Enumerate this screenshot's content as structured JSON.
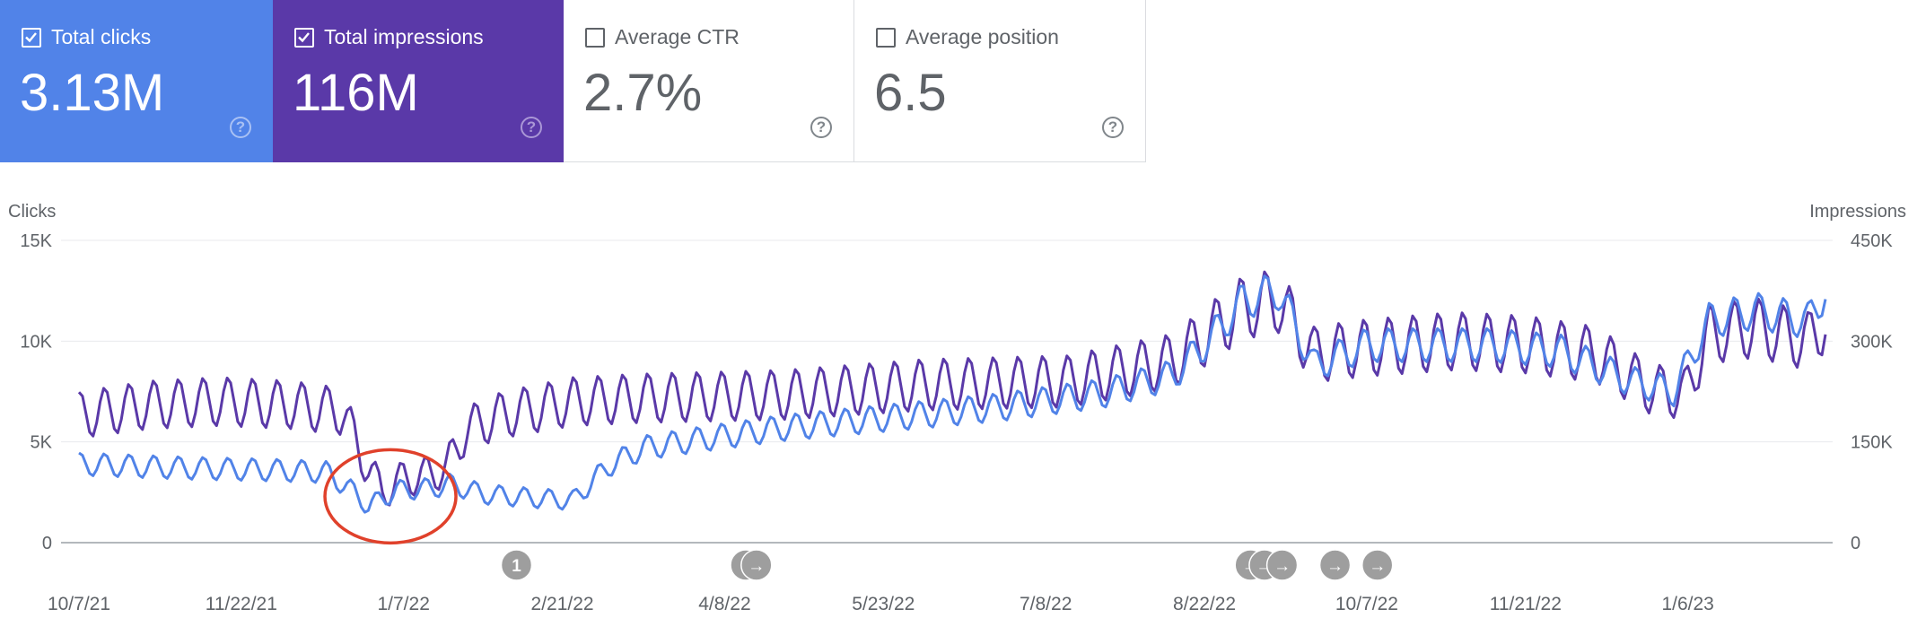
{
  "cards": [
    {
      "label": "Total clicks",
      "value": "3.13M",
      "checked": true,
      "help": "?"
    },
    {
      "label": "Total impressions",
      "value": "116M",
      "checked": true,
      "help": "?"
    },
    {
      "label": "Average CTR",
      "value": "2.7%",
      "checked": false,
      "help": "?"
    },
    {
      "label": "Average position",
      "value": "6.5",
      "checked": false,
      "help": "?"
    }
  ],
  "colors": {
    "clicks": "#5183e8",
    "impressions": "#5a39a8",
    "annotation": "#e0412b",
    "grid": "#e8eaed",
    "axis": "#9aa0a6",
    "marker": "#9e9e9e"
  },
  "chart_data": {
    "type": "line",
    "left_axis_title": "Clicks",
    "right_axis_title": "Impressions",
    "left_ticks": [
      "0",
      "5K",
      "10K",
      "15K"
    ],
    "right_ticks": [
      "0",
      "150K",
      "300K",
      "450K"
    ],
    "ylim_left": [
      0,
      15000
    ],
    "ylim_right": [
      0,
      450000
    ],
    "x_tick_labels": [
      "10/7/21",
      "11/22/21",
      "1/7/22",
      "2/21/22",
      "4/8/22",
      "5/23/22",
      "7/8/22",
      "8/22/22",
      "10/7/22",
      "11/21/22",
      "1/6/23"
    ],
    "x_tick_days": [
      0,
      46,
      92,
      137,
      183,
      228,
      274,
      319,
      365,
      410,
      456
    ],
    "day_span": [
      0,
      495
    ],
    "event_markers": [
      {
        "day": 124,
        "label": "1"
      },
      {
        "day": 189,
        "label": "→"
      },
      {
        "day": 192,
        "label": "→"
      },
      {
        "day": 332,
        "label": "→"
      },
      {
        "day": 336,
        "label": "→"
      },
      {
        "day": 341,
        "label": "→"
      },
      {
        "day": 356,
        "label": "→"
      },
      {
        "day": 368,
        "label": "→"
      }
    ],
    "annotation": {
      "type": "circle",
      "note": "dip highlighted",
      "day": 87,
      "clicks": 2300
    },
    "series": [
      {
        "name": "Clicks",
        "axis": "left",
        "anchors": [
          [
            0,
            3900
          ],
          [
            30,
            3700
          ],
          [
            55,
            3600
          ],
          [
            70,
            3500
          ],
          [
            78,
            2500
          ],
          [
            82,
            1800
          ],
          [
            90,
            2600
          ],
          [
            100,
            2700
          ],
          [
            105,
            2900
          ],
          [
            115,
            2400
          ],
          [
            130,
            2200
          ],
          [
            140,
            2100
          ],
          [
            150,
            3800
          ],
          [
            160,
            4700
          ],
          [
            175,
            5100
          ],
          [
            200,
            5700
          ],
          [
            230,
            6200
          ],
          [
            260,
            6700
          ],
          [
            290,
            7400
          ],
          [
            310,
            8300
          ],
          [
            320,
            10000
          ],
          [
            330,
            12000
          ],
          [
            340,
            12500
          ],
          [
            350,
            8800
          ],
          [
            365,
            9800
          ],
          [
            380,
            9800
          ],
          [
            400,
            9800
          ],
          [
            420,
            9500
          ],
          [
            440,
            8000
          ],
          [
            452,
            7500
          ],
          [
            462,
            11000
          ],
          [
            475,
            11500
          ],
          [
            490,
            11000
          ],
          [
            495,
            12500
          ]
        ],
        "amplitude": 700
      },
      {
        "name": "Impressions",
        "axis": "right",
        "anchors": [
          [
            0,
            190000
          ],
          [
            20,
            205000
          ],
          [
            40,
            210000
          ],
          [
            60,
            205000
          ],
          [
            75,
            195000
          ],
          [
            80,
            130000
          ],
          [
            86,
            75000
          ],
          [
            92,
            95000
          ],
          [
            98,
            100000
          ],
          [
            104,
            110000
          ],
          [
            110,
            170000
          ],
          [
            120,
            190000
          ],
          [
            140,
            210000
          ],
          [
            160,
            215000
          ],
          [
            200,
            220000
          ],
          [
            240,
            235000
          ],
          [
            280,
            240000
          ],
          [
            310,
            270000
          ],
          [
            320,
            310000
          ],
          [
            330,
            350000
          ],
          [
            340,
            360000
          ],
          [
            350,
            280000
          ],
          [
            365,
            290000
          ],
          [
            390,
            300000
          ],
          [
            410,
            295000
          ],
          [
            430,
            280000
          ],
          [
            445,
            230000
          ],
          [
            455,
            220000
          ],
          [
            462,
            310000
          ],
          [
            475,
            320000
          ],
          [
            490,
            300000
          ],
          [
            495,
            330000
          ]
        ],
        "amplitude": 36000
      }
    ]
  }
}
